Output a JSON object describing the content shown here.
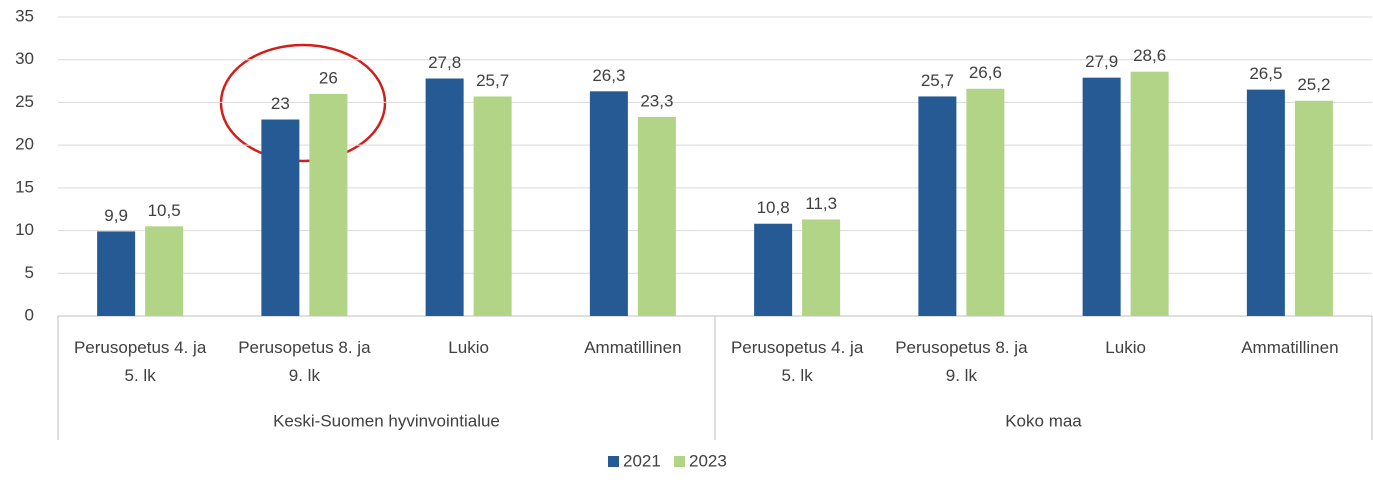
{
  "chart_data": {
    "type": "bar",
    "groups": [
      {
        "name": "Keski-Suomen hyvinvointialue",
        "categories": [
          "Perusopetus 4. ja 5. lk",
          "Perusopetus 8. ja 9. lk",
          "Lukio",
          "Ammatillinen"
        ]
      },
      {
        "name": "Koko maa",
        "categories": [
          "Perusopetus 4. ja 5. lk",
          "Perusopetus 8. ja 9. lk",
          "Lukio",
          "Ammatillinen"
        ]
      }
    ],
    "series": [
      {
        "name": "2021",
        "color": "#255a94",
        "values": [
          9.9,
          23,
          27.8,
          26.3,
          10.8,
          25.7,
          27.9,
          26.5
        ],
        "value_labels": [
          "9,9",
          "23",
          "27,8",
          "26,3",
          "10,8",
          "25,7",
          "27,9",
          "26,5"
        ]
      },
      {
        "name": "2023",
        "color": "#b2d487",
        "values": [
          10.5,
          26,
          25.7,
          23.3,
          11.3,
          26.6,
          28.6,
          25.2
        ],
        "value_labels": [
          "10,5",
          "26",
          "25,7",
          "23,3",
          "11,3",
          "26,6",
          "28,6",
          "25,2"
        ]
      }
    ],
    "ylim": [
      0,
      35
    ],
    "yticks": [
      0,
      5,
      10,
      15,
      20,
      25,
      30,
      35
    ],
    "grid": true,
    "legend": "bottom"
  }
}
